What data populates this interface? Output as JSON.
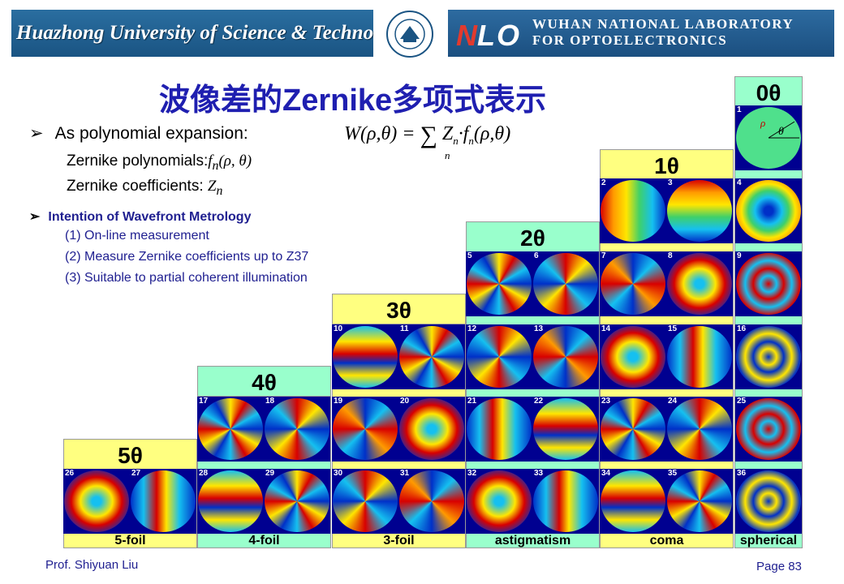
{
  "header": {
    "university": "Huazhong University of Science & Technology",
    "lab_logo": "NLO",
    "lab_line1": "WUHAN NATIONAL LABORATORY",
    "lab_line2": "FOR OPTOELECTRONICS"
  },
  "title": "波像差的Zernike多项式表示",
  "bullet1": {
    "arrow": "➢",
    "text": "As polynomial expansion:",
    "formula_lhs": "W(ρ,θ) =",
    "formula_sum": "∑",
    "formula_sub": "n",
    "formula_rhs_z": "Z",
    "formula_rhs_dot": "·f",
    "formula_rhs_args": "(ρ,θ)"
  },
  "sub1": {
    "text": "Zernike polynomials:",
    "math_f": "f",
    "math_n": "n",
    "math_args": "(ρ, θ)"
  },
  "sub2": {
    "text": "Zernike coefficients:",
    "math_z": "Z",
    "math_n": "n"
  },
  "bullet2": {
    "arrow": "➢",
    "text": "Intention of Wavefront Metrology"
  },
  "items": [
    "(1) On-line measurement",
    "(2) Measure Zernike coefficients up to Z37",
    "(3) Suitable to partial coherent illumination"
  ],
  "orders": [
    "5θ",
    "4θ",
    "3θ",
    "2θ",
    "1θ",
    "0θ"
  ],
  "footer": [
    "5-foil",
    "4-foil",
    "3-foil",
    "astigmatism",
    "coma",
    "spherical"
  ],
  "cell_numbers": [
    "1",
    "2",
    "3",
    "4",
    "5",
    "6",
    "7",
    "8",
    "9",
    "10",
    "11",
    "12",
    "13",
    "14",
    "15",
    "16",
    "17",
    "18",
    "19",
    "20",
    "21",
    "22",
    "23",
    "24",
    "25",
    "26",
    "27",
    "28",
    "29",
    "30",
    "31",
    "32",
    "33",
    "34",
    "35",
    "36"
  ],
  "z1_labels": {
    "rho": "ρ",
    "theta": "θ"
  },
  "prof": "Prof. Shiyuan Liu",
  "page": "Page 83",
  "colors": {
    "title": "#1f1fb0",
    "order_yellow": "#ffff80",
    "order_green": "#99ffcc",
    "cell_bg": "#000090"
  }
}
